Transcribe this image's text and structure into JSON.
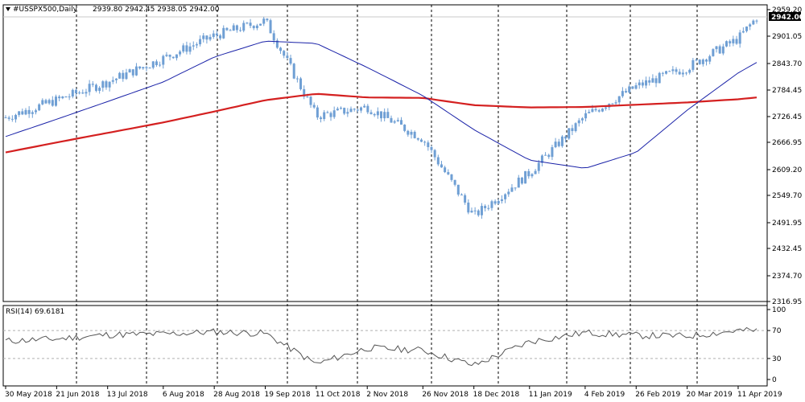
{
  "symbol": "#USSPX500",
  "timeframe": "Daily",
  "ohlc": {
    "open": "2939.80",
    "high": "2942.45",
    "low": "2938.05",
    "close": "2942.00"
  },
  "current_price_label": "2942.00",
  "price_axis_labels": [
    "2959.20",
    "2901.05",
    "2843.70",
    "2784.45",
    "2726.45",
    "2666.95",
    "2609.20",
    "2549.70",
    "2491.95",
    "2432.45",
    "2374.70",
    "2316.95"
  ],
  "rsi": {
    "title": "RSI(14)",
    "value": "69.6181",
    "levels": [
      "100",
      "70",
      "30",
      "0"
    ]
  },
  "date_labels": [
    "30 May 2018",
    "21 Jun 2018",
    "13 Jul 2018",
    "6 Aug 2018",
    "28 Aug 2018",
    "19 Sep 2018",
    "11 Oct 2018",
    "2 Nov 2018",
    "26 Nov 2018",
    "18 Dec 2018",
    "11 Jan 2019",
    "4 Feb 2019",
    "26 Feb 2019",
    "20 Mar 2019",
    "11 Apr 2019"
  ],
  "colors": {
    "candle": "#6f9fd4",
    "ma_fast": "#1a22a8",
    "ma_slow": "#d42020",
    "grid": "#000000",
    "rsi_line": "#555555",
    "rsi_level": "#b0b0b0",
    "price_box": "#000000",
    "price_box_text": "#ffffff"
  },
  "chart_data": {
    "type": "candlestick",
    "symbol": "#USSPX500",
    "timeframe": "Daily",
    "price_range": [
      2316.95,
      2959.2
    ],
    "rsi_range": [
      0,
      100
    ],
    "ma_fast": [
      [
        "30 May 2018",
        2680
      ],
      [
        "21 Jun 2018",
        2718
      ],
      [
        "13 Jul 2018",
        2757
      ],
      [
        "6 Aug 2018",
        2800
      ],
      [
        "28 Aug 2018",
        2855
      ],
      [
        "19 Sep 2018",
        2890
      ],
      [
        "11 Oct 2018",
        2885
      ],
      [
        "2 Nov 2018",
        2832
      ],
      [
        "26 Nov 2018",
        2770
      ],
      [
        "18 Dec 2018",
        2695
      ],
      [
        "11 Jan 2019",
        2628
      ],
      [
        "4 Feb 2019",
        2610
      ],
      [
        "26 Feb 2019",
        2645
      ],
      [
        "20 Mar 2019",
        2738
      ],
      [
        "11 Apr 2019",
        2820
      ],
      [
        "19 Apr 2019",
        2843
      ]
    ],
    "ma_slow": [
      [
        "30 May 2018",
        2645
      ],
      [
        "21 Jun 2018",
        2667
      ],
      [
        "13 Jul 2018",
        2688
      ],
      [
        "6 Aug 2018",
        2711
      ],
      [
        "28 Aug 2018",
        2735
      ],
      [
        "19 Sep 2018",
        2760
      ],
      [
        "11 Oct 2018",
        2774
      ],
      [
        "2 Nov 2018",
        2766
      ],
      [
        "26 Nov 2018",
        2765
      ],
      [
        "18 Dec 2018",
        2749
      ],
      [
        "11 Jan 2019",
        2744
      ],
      [
        "4 Feb 2019",
        2745
      ],
      [
        "26 Feb 2019",
        2750
      ],
      [
        "20 Mar 2019",
        2755
      ],
      [
        "11 Apr 2019",
        2762
      ],
      [
        "19 Apr 2019",
        2766
      ]
    ],
    "closes": [
      [
        "30 May 2018",
        2722
      ],
      [
        "21 Jun 2018",
        2760
      ],
      [
        "13 Jul 2018",
        2800
      ],
      [
        "6 Aug 2018",
        2852
      ],
      [
        "28 Aug 2018",
        2902
      ],
      [
        "19 Sep 2018",
        2935
      ],
      [
        "11 Oct 2018",
        2725
      ],
      [
        "2 Nov 2018",
        2745
      ],
      [
        "26 Nov 2018",
        2675
      ],
      [
        "18 Dec 2018",
        2505
      ],
      [
        "11 Jan 2019",
        2600
      ],
      [
        "4 Feb 2019",
        2725
      ],
      [
        "26 Feb 2019",
        2790
      ],
      [
        "20 Mar 2019",
        2832
      ],
      [
        "11 Apr 2019",
        2895
      ],
      [
        "19 Apr 2019",
        2942
      ]
    ],
    "rsi": [
      [
        "30 May 2018",
        55
      ],
      [
        "21 Jun 2018",
        58
      ],
      [
        "13 Jul 2018",
        64
      ],
      [
        "6 Aug 2018",
        65
      ],
      [
        "28 Aug 2018",
        68
      ],
      [
        "19 Sep 2018",
        66
      ],
      [
        "11 Oct 2018",
        22
      ],
      [
        "2 Nov 2018",
        45
      ],
      [
        "26 Nov 2018",
        42
      ],
      [
        "18 Dec 2018",
        20
      ],
      [
        "11 Jan 2019",
        54
      ],
      [
        "4 Feb 2019",
        67
      ],
      [
        "26 Feb 2019",
        63
      ],
      [
        "20 Mar 2019",
        62
      ],
      [
        "11 Apr 2019",
        70
      ],
      [
        "19 Apr 2019",
        69.6181
      ]
    ]
  }
}
